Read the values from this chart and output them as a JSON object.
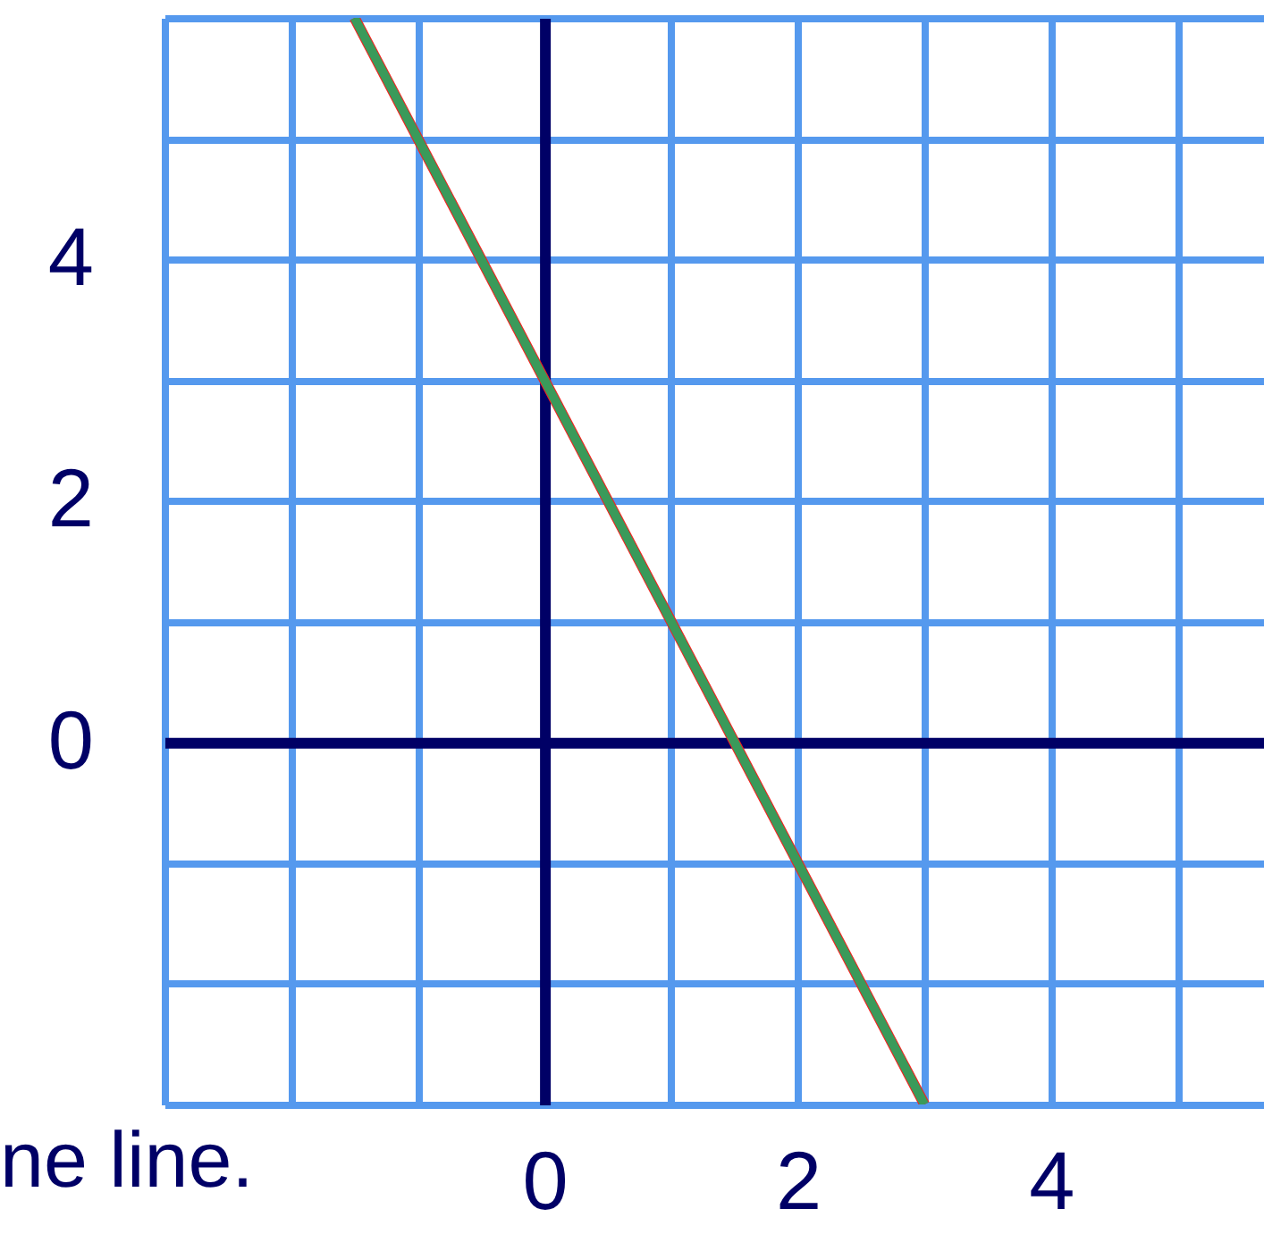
{
  "chart_data": {
    "type": "line",
    "x": [
      -1.5,
      3
    ],
    "series": [
      {
        "color": "#ff1a1a",
        "values": [
          6,
          -3
        ]
      },
      {
        "color": "#3a9a5a",
        "values": [
          6,
          -3
        ]
      }
    ],
    "xlim": [
      -3,
      5.68
    ],
    "ylim": [
      -3,
      6
    ],
    "xticks": [
      {
        "value": -3,
        "label": null
      },
      {
        "value": -2,
        "label": null
      },
      {
        "value": -1,
        "label": null
      },
      0,
      {
        "value": 1,
        "label": null
      },
      2,
      {
        "value": 3,
        "label": null
      },
      4,
      {
        "value": 5,
        "label": null
      }
    ],
    "yticks": [
      {
        "value": -3,
        "label": null
      },
      {
        "value": -2,
        "label": null
      },
      {
        "value": -1,
        "label": null
      },
      0,
      {
        "value": 1,
        "label": null
      },
      2,
      {
        "value": 3,
        "label": null
      },
      4,
      {
        "value": 5,
        "label": null
      },
      {
        "value": 6,
        "label": null
      }
    ],
    "grid": true,
    "annotations": [
      "ne line."
    ]
  }
}
